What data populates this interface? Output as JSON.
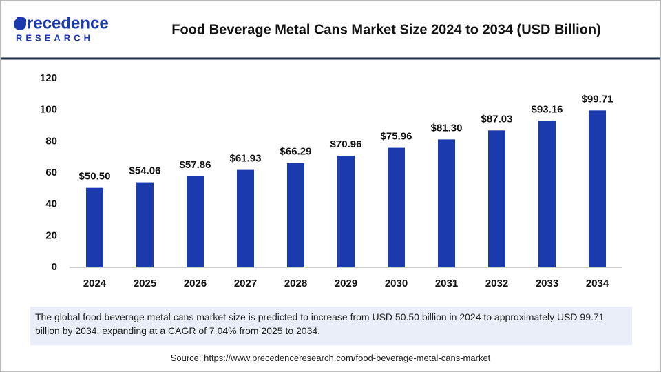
{
  "brand": {
    "name": "Precedence",
    "sub": "RESEARCH"
  },
  "chart_data": {
    "type": "bar",
    "title": "Food Beverage Metal Cans Market Size 2024 to 2034 (USD Billion)",
    "categories": [
      "2024",
      "2025",
      "2026",
      "2027",
      "2028",
      "2029",
      "2030",
      "2031",
      "2032",
      "2033",
      "2034"
    ],
    "values": [
      50.5,
      54.06,
      57.86,
      61.93,
      66.29,
      70.96,
      75.96,
      81.3,
      87.03,
      93.16,
      99.71
    ],
    "value_labels": [
      "$50.50",
      "$54.06",
      "$57.86",
      "$61.93",
      "$66.29",
      "$70.96",
      "$75.96",
      "$81.30",
      "$87.03",
      "$93.16",
      "$99.71"
    ],
    "color": "#1a3aad",
    "ylim": [
      0,
      120
    ],
    "yticks": [
      0,
      20,
      40,
      60,
      80,
      100,
      120
    ],
    "grid": false
  },
  "description": "The global food beverage metal cans market size is predicted to increase from USD 50.50 billion in 2024 to approximately USD 99.71 billion by 2034, expanding at a CAGR of 7.04% from 2025 to 2034.",
  "source": "Source: https://www.precedenceresearch.com/food-beverage-metal-cans-market"
}
